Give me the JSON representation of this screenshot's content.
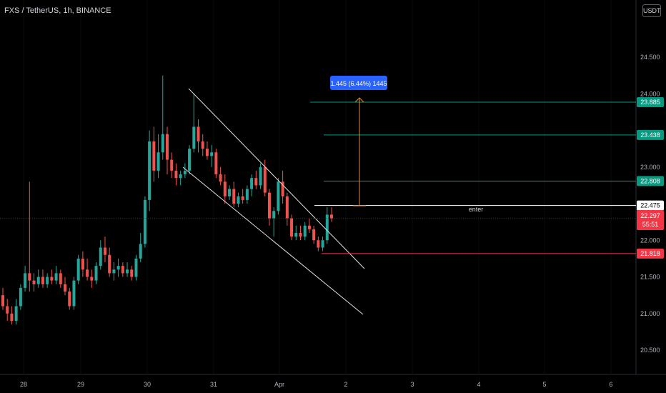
{
  "header": {
    "title": "FXS / TetherUS, 1h, BINANCE",
    "currency": "USDT"
  },
  "chart_data": {
    "type": "candlestick",
    "symbol": "FXS / TetherUS",
    "interval": "1h",
    "exchange": "BINANCE",
    "price_axis_ticks": [
      "24.500",
      "24.000",
      "23.000",
      "22.000",
      "21.500",
      "21.000",
      "20.500"
    ],
    "time_axis_ticks": [
      "28",
      "29",
      "30",
      "31",
      "Apr",
      "2",
      "3",
      "4",
      "5",
      "6"
    ],
    "ylim": [
      20.2,
      25.4
    ],
    "colors": {
      "up": "#26a69a",
      "down": "#ef5350",
      "background": "#000000"
    },
    "candles": [
      {
        "o": 21.25,
        "h": 21.35,
        "l": 21.05,
        "c": 21.1
      },
      {
        "o": 21.1,
        "h": 21.2,
        "l": 20.9,
        "c": 21.0
      },
      {
        "o": 21.0,
        "h": 21.1,
        "l": 20.85,
        "c": 20.9
      },
      {
        "o": 20.9,
        "h": 21.2,
        "l": 20.85,
        "c": 21.1
      },
      {
        "o": 21.1,
        "h": 21.4,
        "l": 21.05,
        "c": 21.35
      },
      {
        "o": 21.35,
        "h": 21.65,
        "l": 21.3,
        "c": 21.55
      },
      {
        "o": 21.55,
        "h": 22.8,
        "l": 21.3,
        "c": 21.45
      },
      {
        "o": 21.45,
        "h": 21.55,
        "l": 21.3,
        "c": 21.4
      },
      {
        "o": 21.4,
        "h": 21.6,
        "l": 21.35,
        "c": 21.5
      },
      {
        "o": 21.5,
        "h": 21.6,
        "l": 21.35,
        "c": 21.4
      },
      {
        "o": 21.4,
        "h": 21.55,
        "l": 21.35,
        "c": 21.5
      },
      {
        "o": 21.5,
        "h": 21.6,
        "l": 21.4,
        "c": 21.45
      },
      {
        "o": 21.45,
        "h": 21.65,
        "l": 21.4,
        "c": 21.55
      },
      {
        "o": 21.55,
        "h": 21.6,
        "l": 21.35,
        "c": 21.4
      },
      {
        "o": 21.4,
        "h": 21.5,
        "l": 21.25,
        "c": 21.3
      },
      {
        "o": 21.3,
        "h": 21.35,
        "l": 21.05,
        "c": 21.1
      },
      {
        "o": 21.1,
        "h": 21.5,
        "l": 21.05,
        "c": 21.45
      },
      {
        "o": 21.45,
        "h": 21.8,
        "l": 21.4,
        "c": 21.75
      },
      {
        "o": 21.75,
        "h": 21.85,
        "l": 21.5,
        "c": 21.6
      },
      {
        "o": 21.6,
        "h": 21.75,
        "l": 21.45,
        "c": 21.5
      },
      {
        "o": 21.5,
        "h": 21.6,
        "l": 21.35,
        "c": 21.45
      },
      {
        "o": 21.45,
        "h": 21.7,
        "l": 21.4,
        "c": 21.65
      },
      {
        "o": 21.65,
        "h": 22.0,
        "l": 21.6,
        "c": 21.9
      },
      {
        "o": 21.9,
        "h": 22.05,
        "l": 21.7,
        "c": 21.8
      },
      {
        "o": 21.8,
        "h": 21.9,
        "l": 21.5,
        "c": 21.55
      },
      {
        "o": 21.55,
        "h": 21.7,
        "l": 21.45,
        "c": 21.6
      },
      {
        "o": 21.6,
        "h": 21.75,
        "l": 21.5,
        "c": 21.65
      },
      {
        "o": 21.65,
        "h": 21.7,
        "l": 21.5,
        "c": 21.55
      },
      {
        "o": 21.55,
        "h": 21.7,
        "l": 21.5,
        "c": 21.6
      },
      {
        "o": 21.6,
        "h": 21.65,
        "l": 21.45,
        "c": 21.5
      },
      {
        "o": 21.5,
        "h": 21.8,
        "l": 21.45,
        "c": 21.75
      },
      {
        "o": 21.75,
        "h": 22.1,
        "l": 21.7,
        "c": 21.95
      },
      {
        "o": 21.95,
        "h": 22.6,
        "l": 21.9,
        "c": 22.55
      },
      {
        "o": 22.55,
        "h": 23.5,
        "l": 22.4,
        "c": 23.35
      },
      {
        "o": 23.35,
        "h": 23.55,
        "l": 22.8,
        "c": 22.95
      },
      {
        "o": 22.95,
        "h": 23.45,
        "l": 22.85,
        "c": 23.2
      },
      {
        "o": 23.2,
        "h": 24.25,
        "l": 23.1,
        "c": 23.45
      },
      {
        "o": 23.45,
        "h": 23.55,
        "l": 22.9,
        "c": 23.1
      },
      {
        "o": 23.1,
        "h": 23.2,
        "l": 22.85,
        "c": 22.95
      },
      {
        "o": 22.95,
        "h": 23.05,
        "l": 22.75,
        "c": 22.85
      },
      {
        "o": 22.85,
        "h": 22.95,
        "l": 22.75,
        "c": 22.9
      },
      {
        "o": 22.9,
        "h": 23.05,
        "l": 22.85,
        "c": 22.95
      },
      {
        "o": 22.95,
        "h": 23.3,
        "l": 22.9,
        "c": 23.25
      },
      {
        "o": 23.25,
        "h": 24.0,
        "l": 23.2,
        "c": 23.55
      },
      {
        "o": 23.55,
        "h": 23.65,
        "l": 23.2,
        "c": 23.35
      },
      {
        "o": 23.35,
        "h": 23.45,
        "l": 23.15,
        "c": 23.25
      },
      {
        "o": 23.25,
        "h": 23.35,
        "l": 23.1,
        "c": 23.15
      },
      {
        "o": 23.15,
        "h": 23.3,
        "l": 23.0,
        "c": 23.2
      },
      {
        "o": 23.2,
        "h": 23.25,
        "l": 22.85,
        "c": 22.9
      },
      {
        "o": 22.9,
        "h": 23.0,
        "l": 22.75,
        "c": 22.8
      },
      {
        "o": 22.8,
        "h": 22.9,
        "l": 22.5,
        "c": 22.6
      },
      {
        "o": 22.6,
        "h": 22.75,
        "l": 22.55,
        "c": 22.7
      },
      {
        "o": 22.7,
        "h": 22.8,
        "l": 22.45,
        "c": 22.5
      },
      {
        "o": 22.5,
        "h": 22.65,
        "l": 22.45,
        "c": 22.6
      },
      {
        "o": 22.6,
        "h": 22.7,
        "l": 22.5,
        "c": 22.55
      },
      {
        "o": 22.55,
        "h": 22.75,
        "l": 22.5,
        "c": 22.7
      },
      {
        "o": 22.7,
        "h": 22.9,
        "l": 22.6,
        "c": 22.85
      },
      {
        "o": 22.85,
        "h": 22.95,
        "l": 22.7,
        "c": 22.75
      },
      {
        "o": 22.75,
        "h": 23.05,
        "l": 22.7,
        "c": 23.0
      },
      {
        "o": 23.0,
        "h": 23.1,
        "l": 22.6,
        "c": 22.65
      },
      {
        "o": 22.65,
        "h": 22.7,
        "l": 22.2,
        "c": 22.3
      },
      {
        "o": 22.3,
        "h": 22.45,
        "l": 22.05,
        "c": 22.4
      },
      {
        "o": 22.4,
        "h": 22.85,
        "l": 22.35,
        "c": 22.8
      },
      {
        "o": 22.8,
        "h": 22.95,
        "l": 22.5,
        "c": 22.6
      },
      {
        "o": 22.6,
        "h": 22.65,
        "l": 22.2,
        "c": 22.3
      },
      {
        "o": 22.3,
        "h": 22.35,
        "l": 22.0,
        "c": 22.05
      },
      {
        "o": 22.05,
        "h": 22.2,
        "l": 22.0,
        "c": 22.1
      },
      {
        "o": 22.1,
        "h": 22.2,
        "l": 22.0,
        "c": 22.05
      },
      {
        "o": 22.05,
        "h": 22.25,
        "l": 22.0,
        "c": 22.2
      },
      {
        "o": 22.2,
        "h": 22.3,
        "l": 22.1,
        "c": 22.15
      },
      {
        "o": 22.15,
        "h": 22.2,
        "l": 21.95,
        "c": 22.0
      },
      {
        "o": 22.0,
        "h": 22.05,
        "l": 21.85,
        "c": 21.9
      },
      {
        "o": 21.9,
        "h": 22.05,
        "l": 21.85,
        "c": 22.0
      },
      {
        "o": 22.0,
        "h": 22.45,
        "l": 21.95,
        "c": 22.35
      },
      {
        "o": 22.35,
        "h": 22.45,
        "l": 22.25,
        "c": 22.3
      }
    ],
    "drawings": {
      "channel": "descending channel",
      "measure_label": "1.445 (6.44%) 1445",
      "enter_label": "enter",
      "levels": [
        {
          "price": 23.885,
          "label": "23.885",
          "color": "#089981"
        },
        {
          "price": 23.438,
          "label": "23.438",
          "color": "#089981"
        },
        {
          "price": 22.808,
          "label": "22.808",
          "color": "#089981"
        },
        {
          "price": 22.475,
          "label": "22.475",
          "color": "#ffffff"
        },
        {
          "price": 21.818,
          "label": "21.818",
          "color": "#f23645"
        }
      ]
    },
    "last_price": {
      "price": 22.297,
      "label": "22.297",
      "countdown": "55:51",
      "color": "#f23645"
    }
  }
}
